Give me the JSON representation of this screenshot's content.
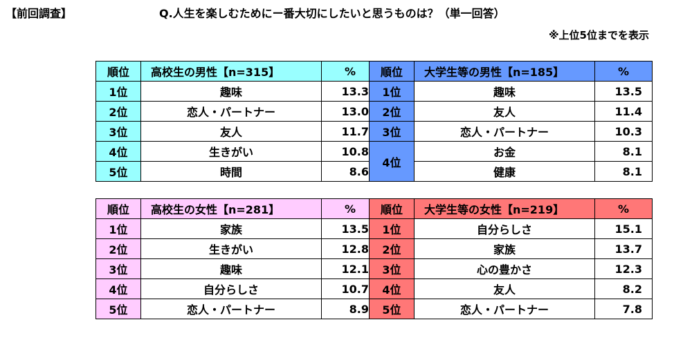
{
  "header": {
    "label": "【前回調査】",
    "question": "Q.人生を楽しむためにー番大切にしたいと思うものは？（単一回答）",
    "note": "※上位5位までを表示"
  },
  "chart_data": [
    {
      "type": "table",
      "color": "#99ffff",
      "header": {
        "rank": "順位",
        "title": "高校生の男性【n=315】",
        "pct": "%"
      },
      "rows": [
        {
          "rank": "1位",
          "item": "趣味",
          "value": 13.3
        },
        {
          "rank": "2位",
          "item": "恋人・パートナー",
          "value": 13.0
        },
        {
          "rank": "3位",
          "item": "友人",
          "value": 11.7
        },
        {
          "rank": "4位",
          "item": "生きがい",
          "value": 10.8
        },
        {
          "rank": "5位",
          "item": "時間",
          "value": 8.6
        }
      ]
    },
    {
      "type": "table",
      "color": "#6699ff",
      "header": {
        "rank": "順位",
        "title": "大学生等の男性【n=185】",
        "pct": "%"
      },
      "rows": [
        {
          "rank": "1位",
          "item": "趣味",
          "value": 13.5
        },
        {
          "rank": "2位",
          "item": "友人",
          "value": 11.4
        },
        {
          "rank": "3位",
          "item": "恋人・パートナー",
          "value": 10.3
        },
        {
          "rank": "4位",
          "item": "お金",
          "value": 8.1
        },
        {
          "rank": "4位",
          "item": "健康",
          "value": 8.1
        }
      ]
    },
    {
      "type": "table",
      "color": "#ffccff",
      "header": {
        "rank": "順位",
        "title": "高校生の女性【n=281】",
        "pct": "%"
      },
      "rows": [
        {
          "rank": "1位",
          "item": "家族",
          "value": 13.5
        },
        {
          "rank": "2位",
          "item": "生きがい",
          "value": 12.8
        },
        {
          "rank": "3位",
          "item": "趣味",
          "value": 12.1
        },
        {
          "rank": "4位",
          "item": "自分らしさ",
          "value": 10.7
        },
        {
          "rank": "5位",
          "item": "恋人・パートナー",
          "value": 8.9
        }
      ]
    },
    {
      "type": "table",
      "color": "#ff7777",
      "header": {
        "rank": "順位",
        "title": "大学生等の女性【n=219】",
        "pct": "%"
      },
      "rows": [
        {
          "rank": "1位",
          "item": "自分らしさ",
          "value": 15.1
        },
        {
          "rank": "2位",
          "item": "家族",
          "value": 13.7
        },
        {
          "rank": "3位",
          "item": "心の豊かさ",
          "value": 12.3
        },
        {
          "rank": "4位",
          "item": "友人",
          "value": 8.2
        },
        {
          "rank": "5位",
          "item": "恋人・パートナー",
          "value": 7.8
        }
      ]
    }
  ]
}
